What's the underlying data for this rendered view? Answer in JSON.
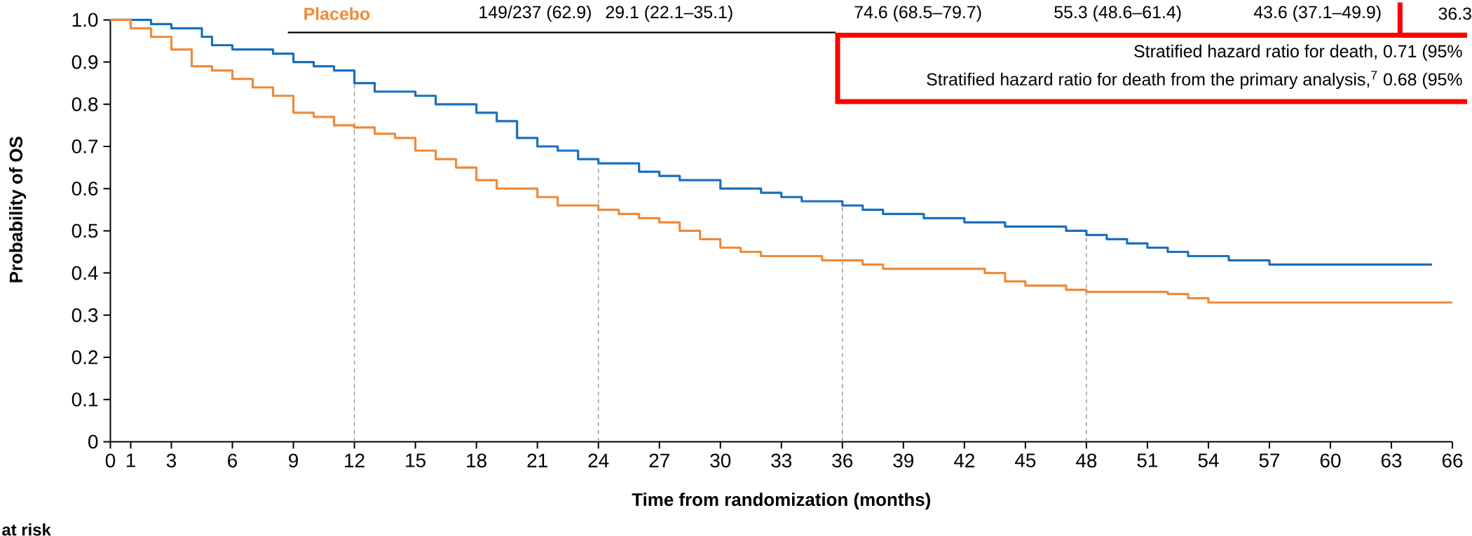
{
  "chart_data": {
    "type": "step",
    "xlabel": "Time from randomization (months)",
    "ylabel": "Probability of OS",
    "xlim": [
      0,
      66
    ],
    "ylim": [
      0,
      1
    ],
    "xticks": [
      0,
      1,
      3,
      6,
      9,
      12,
      15,
      18,
      21,
      24,
      27,
      30,
      33,
      36,
      39,
      42,
      45,
      48,
      51,
      54,
      57,
      60,
      63,
      66
    ],
    "yticks": [
      0,
      0.1,
      0.2,
      0.3,
      0.4,
      0.5,
      0.6,
      0.7,
      0.8,
      0.9,
      {
        "value": 1,
        "label": "1.0"
      }
    ],
    "series": [
      {
        "color": "#1a6fbf",
        "x": [
          0,
          2,
          3,
          4.5,
          5,
          6,
          8,
          9,
          10,
          11,
          12,
          13,
          15,
          16,
          18,
          19,
          20,
          21,
          22,
          23,
          24,
          26,
          27,
          28,
          30,
          32,
          33,
          34,
          36,
          37,
          38,
          40,
          42,
          44,
          47,
          48,
          49,
          50,
          51,
          52,
          53,
          55,
          57,
          65
        ],
        "values": [
          1,
          0.99,
          0.98,
          0.96,
          0.94,
          0.93,
          0.92,
          0.9,
          0.89,
          0.88,
          0.85,
          0.83,
          0.82,
          0.8,
          0.78,
          0.76,
          0.72,
          0.7,
          0.69,
          0.67,
          0.66,
          0.64,
          0.63,
          0.62,
          0.6,
          0.59,
          0.58,
          0.57,
          0.56,
          0.55,
          0.54,
          0.53,
          0.52,
          0.51,
          0.5,
          0.49,
          0.48,
          0.47,
          0.46,
          0.45,
          0.44,
          0.43,
          0.42,
          0.42
        ]
      },
      {
        "name": "Placebo",
        "color": "#ef8a3a",
        "x": [
          0,
          1,
          2,
          3,
          4,
          5,
          6,
          7,
          8,
          9,
          10,
          11,
          12,
          13,
          14,
          15,
          16,
          17,
          18,
          19,
          21,
          22,
          24,
          25,
          26,
          27,
          28,
          29,
          30,
          31,
          32,
          35,
          37,
          38,
          43,
          44,
          45,
          47,
          48,
          52,
          53,
          54,
          66
        ],
        "values": [
          1,
          0.98,
          0.96,
          0.93,
          0.89,
          0.88,
          0.86,
          0.84,
          0.82,
          0.78,
          0.77,
          0.75,
          0.745,
          0.73,
          0.72,
          0.69,
          0.67,
          0.65,
          0.62,
          0.6,
          0.58,
          0.56,
          0.55,
          0.54,
          0.53,
          0.52,
          0.5,
          0.48,
          0.46,
          0.45,
          0.44,
          0.43,
          0.42,
          0.41,
          0.4,
          0.38,
          0.37,
          0.36,
          0.355,
          0.35,
          0.34,
          0.33,
          0.33
        ]
      }
    ],
    "ref_lines": [
      {
        "axis": "x",
        "value": 12,
        "color": "#999999",
        "line_style": "dashed"
      },
      {
        "axis": "x",
        "value": 24,
        "color": "#999999",
        "line_style": "dashed"
      },
      {
        "axis": "x",
        "value": 36,
        "color": "#999999",
        "line_style": "dashed"
      },
      {
        "axis": "x",
        "value": 48,
        "color": "#999999",
        "line_style": "dashed"
      }
    ],
    "annotations": [
      "149/237 (62.9)",
      "29.1 (22.1–35.1)",
      "74.6 (68.5–79.7)",
      "55.3 (48.6–61.4)",
      "43.6 (37.1–49.9)",
      "36.3",
      "Stratified hazard ratio for death, 0.71 (95%",
      "Stratified hazard ratio for death from the primary analysis,$^{7}$ 0.68 (95%",
      "at risk"
    ]
  }
}
